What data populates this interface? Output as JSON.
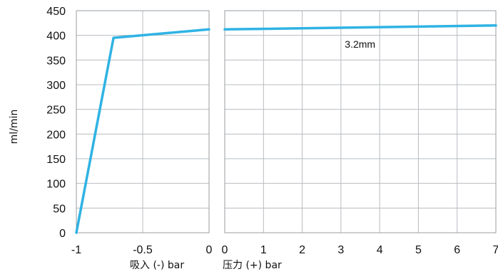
{
  "chart_data": {
    "type": "line",
    "ylabel": "ml/min",
    "ylim": [
      0,
      450
    ],
    "y_ticks": [
      "0",
      "50",
      "100",
      "150",
      "200",
      "250",
      "300",
      "350",
      "400",
      "450"
    ],
    "y_tick_values": [
      0,
      50,
      100,
      150,
      200,
      250,
      300,
      350,
      400,
      450
    ],
    "grid": true,
    "line_color": "#2fb3e3",
    "panels": [
      {
        "id": "suction",
        "xlabel": "吸入 (-) bar",
        "xlim": [
          -1,
          0
        ],
        "x_ticks": [
          "-1",
          "-0.5",
          "0"
        ],
        "x_tick_values": [
          -1,
          -0.5,
          0
        ],
        "series": [
          {
            "x": [
              -1.0,
              -0.72,
              0.0
            ],
            "y": [
              0,
              395,
              412
            ]
          }
        ]
      },
      {
        "id": "pressure",
        "xlabel": "压力 (+) bar",
        "xlim": [
          0,
          7
        ],
        "x_ticks": [
          "0",
          "1",
          "2",
          "3",
          "4",
          "5",
          "6",
          "7"
        ],
        "x_tick_values": [
          0,
          1,
          2,
          3,
          4,
          5,
          6,
          7
        ],
        "series": [
          {
            "name": "3.2mm",
            "x": [
              0,
              7
            ],
            "y": [
              412,
              420
            ]
          }
        ]
      }
    ],
    "annotations": [
      {
        "text": "3.2mm",
        "x": 3.1,
        "y": 395,
        "panel": "pressure"
      }
    ]
  }
}
